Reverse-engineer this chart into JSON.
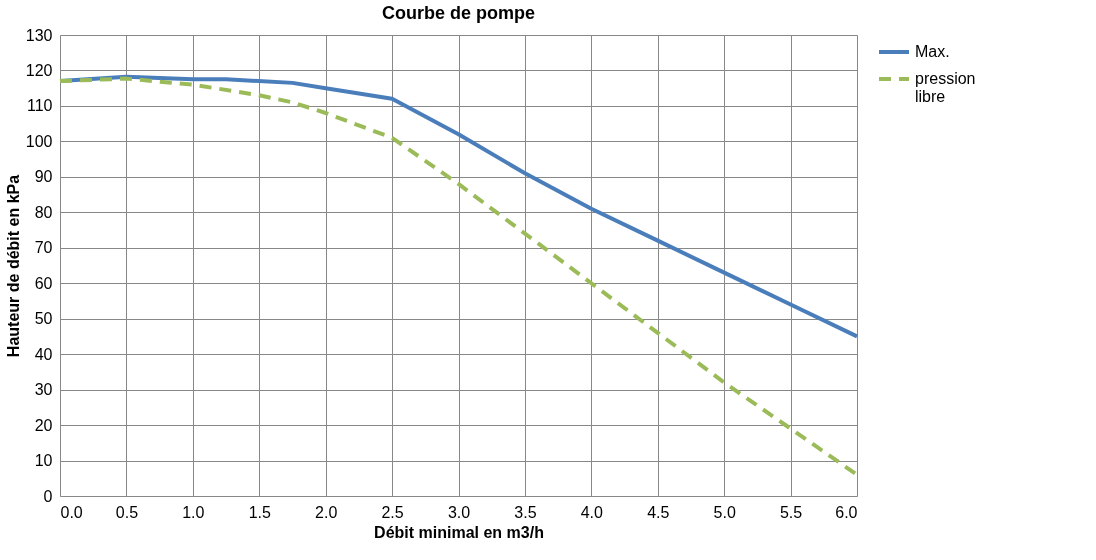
{
  "chart_data": {
    "type": "line",
    "title": "Courbe de pompe",
    "xlabel": "Débit minimal en m3/h",
    "ylabel": "Hauteur de débit en kPa",
    "xlim": [
      0,
      6
    ],
    "xticks": [
      {
        "value": 0,
        "label": "0.0"
      },
      0.5,
      {
        "value": 1,
        "label": "1.0"
      },
      1.5,
      {
        "value": 2,
        "label": "2.0"
      },
      2.5,
      {
        "value": 3,
        "label": "3.0"
      },
      3.5,
      {
        "value": 4,
        "label": "4.0"
      },
      4.5,
      {
        "value": 5,
        "label": "5.0"
      },
      5.5,
      {
        "value": 6,
        "label": "6.0"
      }
    ],
    "ylim": [
      0,
      130
    ],
    "yticks": [
      0,
      10,
      20,
      30,
      40,
      50,
      60,
      70,
      80,
      90,
      100,
      110,
      120,
      130
    ],
    "grid": true,
    "legend": "right",
    "marker": "none",
    "series": [
      {
        "name": "Max.",
        "color": "#4a7ebb",
        "line_style": "solid",
        "x": [
          0,
          0.5,
          1.0,
          1.25,
          1.75,
          2.0,
          2.5,
          3.0,
          3.5,
          4.0,
          4.5,
          5.0,
          5.5,
          6.0
        ],
        "values": [
          117,
          118.2,
          117.5,
          117.5,
          116.5,
          115,
          112,
          102,
          91,
          81,
          72,
          63,
          54,
          45
        ]
      },
      {
        "name": "pression libre",
        "color": "#9bbb59",
        "line_style": "dashed",
        "x": [
          0,
          0.5,
          1.0,
          1.5,
          1.75,
          2.0,
          2.5,
          3.0,
          3.5,
          4.0,
          4.5,
          5.0,
          5.5,
          6.0
        ],
        "values": [
          117,
          117.7,
          116,
          113,
          111,
          108,
          101,
          88,
          74,
          60,
          46,
          32,
          19,
          6
        ]
      }
    ]
  }
}
